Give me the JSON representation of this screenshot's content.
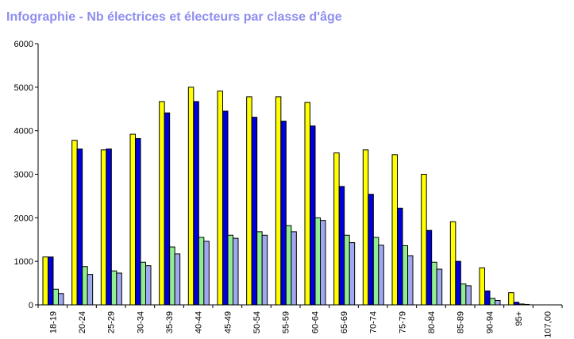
{
  "title": "Infographie - Nb électrices et électeurs par classe d'âge",
  "chart_data": {
    "type": "bar",
    "title": "Infographie - Nb électrices et électeurs par classe d'âge",
    "xlabel": "",
    "ylabel": "",
    "ylim": [
      0,
      6000
    ],
    "yticks": [
      "0",
      "1000",
      "2000",
      "3000",
      "4000",
      "5000",
      "6000"
    ],
    "grid": false,
    "legend": "none",
    "categories": [
      "18-19",
      "20-24",
      "25-29",
      "30-34",
      "35-39",
      "40-44",
      "45-49",
      "50-54",
      "55-59",
      "60-64",
      "65-69",
      "70-74",
      "75-79",
      "80-84",
      "85-89",
      "90-94",
      "95+",
      "107,00"
    ],
    "series": [
      {
        "color": "#ffff00",
        "values": [
          1100,
          3780,
          3560,
          3920,
          4670,
          5000,
          4910,
          4780,
          4780,
          4650,
          3490,
          3560,
          3450,
          3000,
          1910,
          850,
          280,
          0
        ]
      },
      {
        "color": "#0000dd",
        "values": [
          1100,
          3580,
          3580,
          3820,
          4410,
          4670,
          4450,
          4310,
          4220,
          4110,
          2720,
          2540,
          2220,
          1710,
          1000,
          320,
          60,
          0
        ]
      },
      {
        "color": "#90ee90",
        "values": [
          360,
          880,
          780,
          980,
          1330,
          1550,
          1600,
          1680,
          1820,
          2000,
          1600,
          1550,
          1360,
          980,
          480,
          150,
          20,
          0
        ]
      },
      {
        "color": "#a0a8f0",
        "values": [
          260,
          700,
          730,
          900,
          1170,
          1460,
          1530,
          1600,
          1680,
          1940,
          1430,
          1370,
          1130,
          820,
          440,
          100,
          10,
          0
        ]
      }
    ]
  }
}
